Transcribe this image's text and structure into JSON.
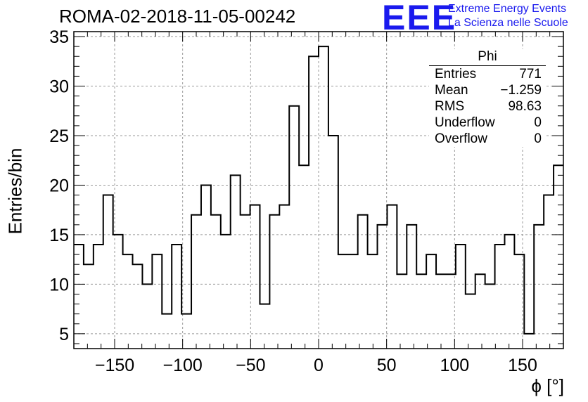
{
  "header": {
    "title": "ROMA-02-2018-11-05-00242",
    "logo_text": "EEE",
    "logo_line1": "Extreme Energy Events",
    "logo_line2": "La Scienza nelle Scuole"
  },
  "stats_box": {
    "title": "Phi",
    "rows": [
      {
        "label": "Entries",
        "value": "771"
      },
      {
        "label": "Mean",
        "value": "−1.259"
      },
      {
        "label": "RMS",
        "value": "98.63"
      },
      {
        "label": "Underflow",
        "value": "0"
      },
      {
        "label": "Overflow",
        "value": "0"
      }
    ]
  },
  "colors": {
    "logo": "#1a1aee",
    "line": "#000000",
    "grid": "#999999"
  },
  "chart_data": {
    "type": "bar",
    "style": "step-histogram",
    "xlabel": "ϕ [°]",
    "ylabel": "Entries/bin",
    "xlim": [
      -180,
      180
    ],
    "ylim": [
      3.5,
      35.5
    ],
    "xticks": [
      -150,
      -100,
      -50,
      0,
      50,
      100,
      150
    ],
    "xtick_labels": [
      "−150",
      "−100",
      "−50",
      "0",
      "50",
      "100",
      "150"
    ],
    "yticks": [
      5,
      10,
      15,
      20,
      25,
      30,
      35
    ],
    "ytick_labels": [
      "5",
      "10",
      "15",
      "20",
      "25",
      "30",
      "35"
    ],
    "grid": true,
    "bin_width": 7.2,
    "bin_centers": [
      -176.4,
      -169.2,
      -162.0,
      -154.8,
      -147.6,
      -140.4,
      -133.2,
      -126.0,
      -118.8,
      -111.6,
      -104.4,
      -97.2,
      -90.0,
      -82.8,
      -75.6,
      -68.4,
      -61.2,
      -54.0,
      -46.8,
      -39.6,
      -32.4,
      -25.2,
      -18.0,
      -10.8,
      -3.6,
      3.6,
      10.8,
      18.0,
      25.2,
      32.4,
      39.6,
      46.8,
      54.0,
      61.2,
      68.4,
      75.6,
      82.8,
      90.0,
      97.2,
      104.4,
      111.6,
      118.8,
      126.0,
      133.2,
      140.4,
      147.6,
      154.8,
      162.0,
      169.2,
      176.4
    ],
    "values": [
      14,
      12,
      14,
      19,
      15,
      13,
      12,
      10,
      13,
      7,
      14,
      7,
      17,
      20,
      17,
      15,
      21,
      17,
      18,
      8,
      17,
      18,
      28,
      22,
      33,
      34,
      25,
      13,
      13,
      17,
      13,
      16,
      18,
      11,
      16,
      11,
      13,
      11,
      11,
      14,
      9,
      11,
      10,
      14,
      15,
      13,
      5,
      16,
      19,
      22
    ]
  }
}
